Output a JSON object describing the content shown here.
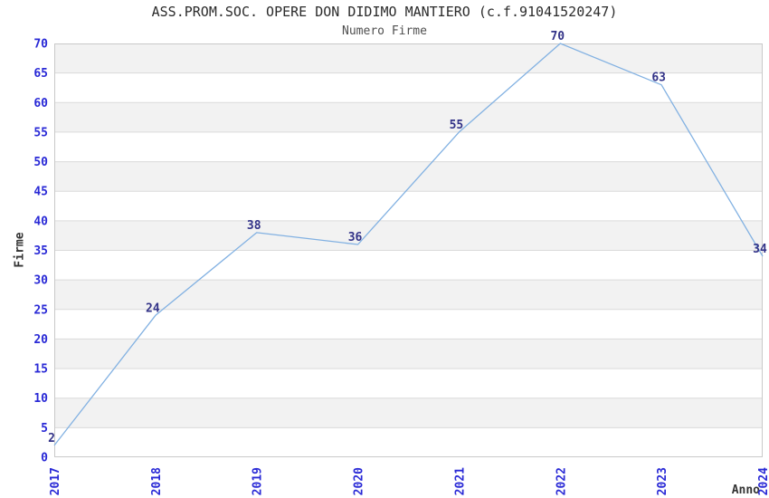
{
  "header": {
    "title": "ASS.PROM.SOC. OPERE DON DIDIMO MANTIERO (c.f.91041520247)",
    "subtitle": "Numero Firme"
  },
  "chart_data": {
    "type": "line",
    "title": "ASS.PROM.SOC. OPERE DON DIDIMO MANTIERO (c.f.91041520247)",
    "subtitle": "Numero Firme",
    "xlabel": "Anno",
    "ylabel": "Firme",
    "x": [
      "2017",
      "2018",
      "2019",
      "2020",
      "2021",
      "2022",
      "2023",
      "2024"
    ],
    "series": [
      {
        "name": "Numero Firme",
        "values": [
          2,
          24,
          38,
          36,
          55,
          70,
          63,
          34
        ]
      }
    ],
    "ylim": [
      0,
      70
    ],
    "ytick_step": 5,
    "grid": "horizontal-bands-alternating",
    "legend": "none",
    "x_tick_rotation": -90,
    "data_labels_shown": true,
    "colors": {
      "line": "#82B1E2",
      "tick_label": "#2929D6",
      "data_label": "#333388",
      "band_gray": "#F2F2F2",
      "gridline": "#DADADA",
      "plot_border": "#C9C9C9"
    }
  }
}
